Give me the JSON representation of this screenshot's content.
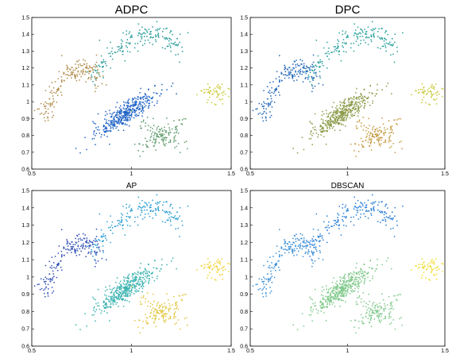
{
  "chart_data": [
    {
      "type": "scatter",
      "title": "ADPC",
      "xlim": [
        0.5,
        1.5
      ],
      "ylim": [
        0.6,
        1.5
      ],
      "xticks": [
        "0.5",
        "1",
        "1.5"
      ],
      "yticks": [
        "0.6",
        "0.7",
        "0.8",
        "0.9",
        "1",
        "1.1",
        "1.2",
        "1.3",
        "1.4",
        "1.5"
      ],
      "grid": false,
      "clusters": [
        {
          "shape": "arc",
          "color": "#b08c4a",
          "x_range": [
            0.55,
            0.85
          ],
          "y_range": [
            0.9,
            1.2
          ]
        },
        {
          "shape": "arc",
          "color": "#2a9d9b",
          "x_range": [
            0.8,
            1.25
          ],
          "y_range": [
            1.15,
            1.4
          ]
        },
        {
          "shape": "blob",
          "color": "#cccb3a",
          "center": [
            1.42,
            1.05
          ]
        },
        {
          "shape": "elongated",
          "color": "#1f63c6",
          "center": [
            0.97,
            0.93
          ]
        },
        {
          "shape": "cross",
          "color": "#5e9a6b",
          "center": [
            1.15,
            0.8
          ]
        }
      ]
    },
    {
      "type": "scatter",
      "title": "DPC",
      "xlim": [
        0.5,
        1.5
      ],
      "ylim": [
        0.6,
        1.5
      ],
      "xticks": [
        "0.5",
        "1",
        "1.5"
      ],
      "yticks": [
        "0.6",
        "0.7",
        "0.8",
        "0.9",
        "1",
        "1.1",
        "1.2",
        "1.3",
        "1.4",
        "1.5"
      ],
      "grid": false,
      "clusters": [
        {
          "shape": "arc",
          "color": "#2166b8",
          "x_range": [
            0.55,
            0.85
          ],
          "y_range": [
            0.9,
            1.2
          ]
        },
        {
          "shape": "arc",
          "color": "#26a09a",
          "x_range": [
            0.8,
            1.25
          ],
          "y_range": [
            1.15,
            1.4
          ]
        },
        {
          "shape": "blob",
          "color": "#c9c83b",
          "center": [
            1.42,
            1.05
          ]
        },
        {
          "shape": "elongated",
          "color": "#8a9a47",
          "center": [
            0.97,
            0.93
          ]
        },
        {
          "shape": "cross",
          "color": "#c49a3f",
          "center": [
            1.15,
            0.8
          ]
        }
      ]
    },
    {
      "type": "scatter",
      "title": "AP",
      "xlim": [
        0.5,
        1.5
      ],
      "ylim": [
        0.6,
        1.5
      ],
      "xticks": [
        "0.5",
        "1",
        "1.5"
      ],
      "yticks": [
        "0.6",
        "0.7",
        "0.8",
        "0.9",
        "1",
        "1.1",
        "1.2",
        "1.3",
        "1.4",
        "1.5"
      ],
      "grid": false,
      "clusters": [
        {
          "shape": "arc",
          "color": "#2f4fb3",
          "x_range": [
            0.55,
            0.85
          ],
          "y_range": [
            0.9,
            1.2
          ]
        },
        {
          "shape": "arc",
          "color": "#2a9dd4",
          "x_range": [
            0.8,
            1.25
          ],
          "y_range": [
            1.15,
            1.4
          ]
        },
        {
          "shape": "blob",
          "color": "#f2d236",
          "center": [
            1.42,
            1.05
          ]
        },
        {
          "shape": "elongated",
          "color": "#3bb3b0",
          "center": [
            0.97,
            0.93
          ]
        },
        {
          "shape": "cross",
          "color": "#e0c43a",
          "center": [
            1.15,
            0.8
          ]
        }
      ]
    },
    {
      "type": "scatter",
      "title": "DBSCAN",
      "xlim": [
        0.5,
        1.5
      ],
      "ylim": [
        0.6,
        1.5
      ],
      "xticks": [
        "0.5",
        "1",
        "1.5"
      ],
      "yticks": [
        "0.6",
        "0.7",
        "0.8",
        "0.9",
        "1",
        "1.1",
        "1.2",
        "1.3",
        "1.4",
        "1.5"
      ],
      "grid": false,
      "clusters": [
        {
          "shape": "arc",
          "color": "#3a8fd6",
          "x_range": [
            0.55,
            0.85
          ],
          "y_range": [
            0.9,
            1.2
          ]
        },
        {
          "shape": "arc",
          "color": "#2a7fd6",
          "x_range": [
            0.8,
            1.25
          ],
          "y_range": [
            1.15,
            1.4
          ]
        },
        {
          "shape": "blob",
          "color": "#f0dc2a",
          "center": [
            1.42,
            1.05
          ]
        },
        {
          "shape": "elongated",
          "color": "#7fc98a",
          "center": [
            0.97,
            0.93
          ]
        },
        {
          "shape": "cross",
          "color": "#7fc98a",
          "center": [
            1.15,
            0.8
          ]
        }
      ]
    }
  ]
}
